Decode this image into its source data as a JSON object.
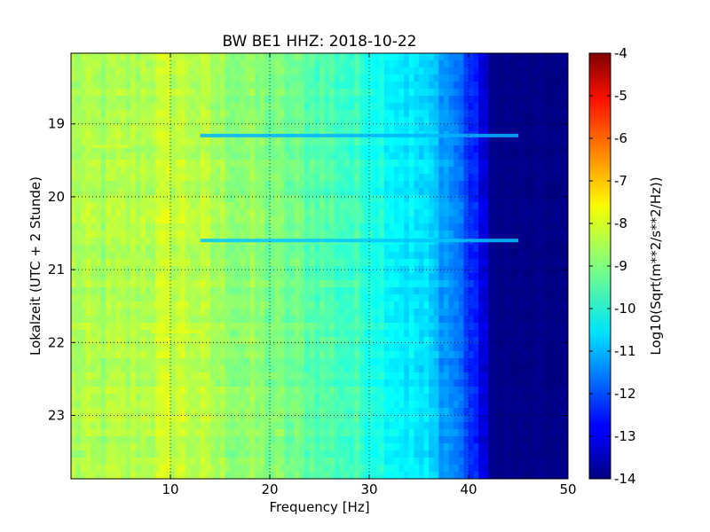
{
  "chart_data": {
    "type": "heatmap",
    "title": "BW BE1 HHZ: 2018-10-22",
    "xlabel": "Frequency [Hz]",
    "ylabel": "Lokalzeit (UTC + 2 Stunde)",
    "xlim": [
      0,
      50
    ],
    "ylim": [
      18.03,
      23.87
    ],
    "y_inverted": true,
    "x_ticks": [
      "10",
      "20",
      "30",
      "40",
      "50"
    ],
    "y_ticks": [
      "19",
      "20",
      "21",
      "22",
      "23"
    ],
    "grid": true,
    "colormap": "jet",
    "colorbar": {
      "label": "Log10(Sqrt(m**2/s**2/Hz))",
      "range": [
        -14,
        -4
      ],
      "ticks": [
        "-4",
        "-5",
        "-6",
        "-7",
        "-8",
        "-9",
        "-10",
        "-11",
        "-12",
        "-13",
        "-14"
      ]
    },
    "spectrum_profile": [
      {
        "freq": 0,
        "value": -8.6
      },
      {
        "freq": 5,
        "value": -8.6
      },
      {
        "freq": 8,
        "value": -8.4
      },
      {
        "freq": 11,
        "value": -8.3
      },
      {
        "freq": 15,
        "value": -8.7
      },
      {
        "freq": 20,
        "value": -9.0
      },
      {
        "freq": 25,
        "value": -9.4
      },
      {
        "freq": 30,
        "value": -9.8
      },
      {
        "freq": 33,
        "value": -10.3
      },
      {
        "freq": 36,
        "value": -10.7
      },
      {
        "freq": 39,
        "value": -11.6
      },
      {
        "freq": 41,
        "value": -12.8
      },
      {
        "freq": 43,
        "value": -13.8
      },
      {
        "freq": 45,
        "value": -14.0
      },
      {
        "freq": 50,
        "value": -14.0
      }
    ],
    "bands": [
      {
        "time": 19.16,
        "freq_from": 13,
        "freq_to": 45,
        "value": -11.0
      },
      {
        "time": 19.31,
        "freq_from": 2,
        "freq_to": 6,
        "value": -8.2
      },
      {
        "time": 20.6,
        "freq_from": 13,
        "freq_to": 45,
        "value": -10.8
      },
      {
        "time": 21.85,
        "freq_from": 8,
        "freq_to": 13,
        "value": -8.0
      }
    ],
    "colors": {
      "jet_low": "#00007f",
      "jet_mid": "#7fff7f",
      "jet_high": "#7f0000",
      "grid": "#000000"
    }
  }
}
